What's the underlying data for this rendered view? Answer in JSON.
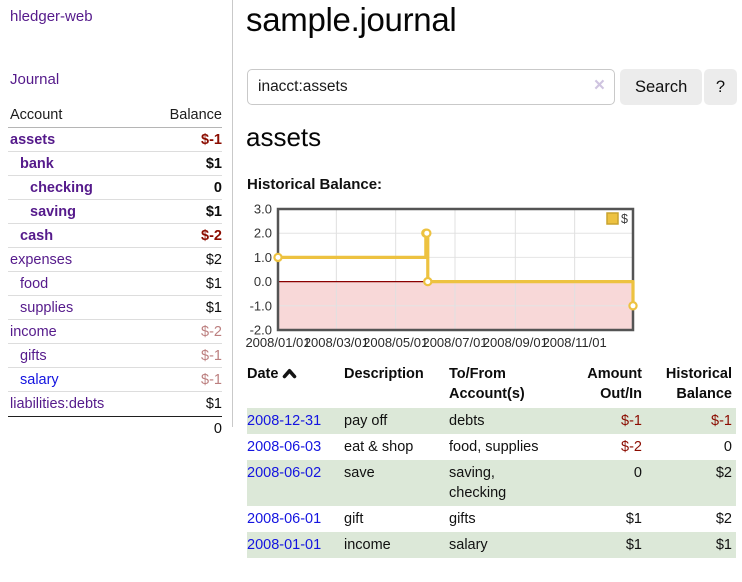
{
  "colors": {
    "purple": "#551a8b",
    "blue": "#1414e0",
    "negative_dark": "#8b0c00",
    "negative_light": "#bc7f7f",
    "row_green": "#dce8d8",
    "series_gold": "#edc240",
    "chart_negative_region": "#f8d8d8",
    "zero_line": "#8b0000"
  },
  "app": {
    "title": "hledger-web",
    "nav_journal": "Journal"
  },
  "sidebar": {
    "col_account": "Account",
    "col_balance": "Balance",
    "accounts": [
      {
        "name": "assets",
        "depth": 1,
        "balance": "$-1",
        "bold": true,
        "balance_tone": "dark"
      },
      {
        "name": "bank",
        "depth": 2,
        "balance": "$1",
        "bold": true,
        "balance_tone": ""
      },
      {
        "name": "checking",
        "depth": 3,
        "balance": "0",
        "bold": true,
        "balance_tone": ""
      },
      {
        "name": "saving",
        "depth": 3,
        "balance": "$1",
        "bold": true,
        "balance_tone": ""
      },
      {
        "name": "cash",
        "depth": 2,
        "balance": "$-2",
        "bold": true,
        "balance_tone": "dark"
      },
      {
        "name": "expenses",
        "depth": 1,
        "balance": "$2",
        "bold": false,
        "balance_tone": ""
      },
      {
        "name": "food",
        "depth": 2,
        "balance": "$1",
        "bold": false,
        "balance_tone": ""
      },
      {
        "name": "supplies",
        "depth": 2,
        "balance": "$1",
        "bold": false,
        "balance_tone": ""
      },
      {
        "name": "income",
        "depth": 1,
        "balance": "$-2",
        "bold": false,
        "balance_tone": "light"
      },
      {
        "name": "gifts",
        "depth": 2,
        "balance": "$-1",
        "bold": false,
        "balance_tone": "light"
      },
      {
        "name": "salary",
        "depth": 2,
        "balance": "$-1",
        "bold": false,
        "balance_tone": "light",
        "link_tone": "blue"
      },
      {
        "name": "liabilities:debts",
        "depth": 1,
        "balance": "$1",
        "bold": false,
        "balance_tone": ""
      }
    ],
    "total": "0"
  },
  "header": {
    "title": "sample.journal"
  },
  "search": {
    "value": "inacct:assets",
    "placeholder": "",
    "clear_icon": "×",
    "button_label": "Search",
    "help_label": "?"
  },
  "account_page": {
    "title": "assets",
    "chart_title": "Historical Balance:"
  },
  "chart_data": {
    "type": "line",
    "step": true,
    "series": [
      {
        "name": "$",
        "color": "#edc240",
        "x": [
          "2008-01-01",
          "2008-06-01",
          "2008-06-02",
          "2008-06-03",
          "2008-12-31"
        ],
        "values": [
          1,
          2,
          2,
          0,
          -1
        ]
      }
    ],
    "legend": {
      "position": "top-right",
      "entries": [
        {
          "label": "$",
          "color": "#edc240"
        }
      ]
    },
    "x_ticks": [
      {
        "date": "2008-01-01",
        "label": "2008/01/01"
      },
      {
        "date": "2008-03-01",
        "label": "2008/03/01"
      },
      {
        "date": "2008-05-01",
        "label": "2008/05/01"
      },
      {
        "date": "2008-07-01",
        "label": "2008/07/01"
      },
      {
        "date": "2008-09-01",
        "label": "2008/09/01"
      },
      {
        "date": "2008-11-01",
        "label": "2008/11/01"
      }
    ],
    "y_ticks": [
      "3.0",
      "2.0",
      "1.0",
      "0.0",
      "-1.0",
      "-2.0"
    ],
    "ylim": [
      -2,
      3
    ],
    "xlim": [
      "2008-01-01",
      "2008-12-31"
    ],
    "grid": true,
    "negative_region": true
  },
  "register": {
    "columns": {
      "date": "Date",
      "description": "Description",
      "accounts": "To/From Account(s)",
      "amount": "Amount Out/In",
      "balance": "Historical Balance"
    },
    "sort": {
      "column": "date",
      "direction": "ascending"
    },
    "rows": [
      {
        "date": "2008-12-31",
        "description": "pay off",
        "accounts": "debts",
        "amount": "$-1",
        "amount_tone": "dark",
        "balance": "$-1",
        "balance_tone": "dark",
        "stripe": true
      },
      {
        "date": "2008-06-03",
        "description": "eat & shop",
        "accounts": "food, supplies",
        "amount": "$-2",
        "amount_tone": "dark",
        "balance": "0",
        "balance_tone": "",
        "stripe": false
      },
      {
        "date": "2008-06-02",
        "description": "save",
        "accounts": "saving,\nchecking",
        "amount": "0",
        "amount_tone": "",
        "balance": "$2",
        "balance_tone": "",
        "stripe": true
      },
      {
        "date": "2008-06-01",
        "description": "gift",
        "accounts": "gifts",
        "amount": "$1",
        "amount_tone": "",
        "balance": "$2",
        "balance_tone": "",
        "stripe": false
      },
      {
        "date": "2008-01-01",
        "description": "income",
        "accounts": "salary",
        "amount": "$1",
        "amount_tone": "",
        "balance": "$1",
        "balance_tone": "",
        "stripe": true
      }
    ]
  }
}
